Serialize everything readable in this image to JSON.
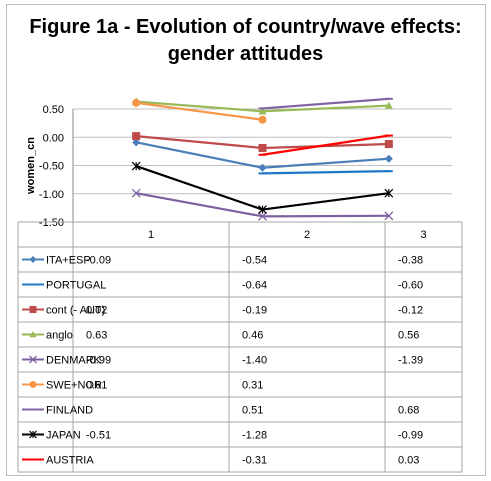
{
  "chart_data": {
    "type": "line",
    "title": "Figure 1a - Evolution of country/wave effects:",
    "subtitle": "gender attitudes",
    "xlabel": "",
    "ylabel": "women_cn",
    "x": [
      "1",
      "2",
      "3"
    ],
    "ylim": [
      -1.5,
      0.5
    ],
    "yticks": [
      "0.50",
      "0.00",
      "-0.50",
      "-1.00",
      "-1.50"
    ],
    "ytick_values": [
      0.5,
      0,
      -0.5,
      -1,
      -1.5
    ],
    "grid": true,
    "legend": "data-table",
    "series": [
      {
        "name": "ITA+ESP",
        "values": [
          -0.09,
          -0.54,
          -0.38
        ],
        "labels": [
          "-0.09",
          "-0.54",
          "-0.38"
        ],
        "color": "#4a7ebb",
        "marker": "diamond"
      },
      {
        "name": "PORTUGAL",
        "values": [
          null,
          -0.64,
          -0.6
        ],
        "labels": [
          "",
          "-0.64",
          "-0.60"
        ],
        "color": "#1f77c9",
        "marker": "dash"
      },
      {
        "name": "cont (- AUT)",
        "values": [
          0.02,
          -0.19,
          -0.12
        ],
        "labels": [
          "0.02",
          "-0.19",
          "-0.12"
        ],
        "color": "#be4b48",
        "marker": "square"
      },
      {
        "name": "anglo",
        "values": [
          0.63,
          0.46,
          0.56
        ],
        "labels": [
          "0.63",
          "0.46",
          "0.56"
        ],
        "color": "#98b954",
        "marker": "triangle"
      },
      {
        "name": "DENMARK",
        "values": [
          -0.99,
          -1.4,
          -1.39
        ],
        "labels": [
          "-0.99",
          "-1.40",
          "-1.39"
        ],
        "color": "#7d60a0",
        "marker": "x"
      },
      {
        "name": "SWE+NOR",
        "values": [
          0.61,
          0.31,
          null
        ],
        "labels": [
          "0.61",
          "0.31",
          ""
        ],
        "color": "#f79646",
        "marker": "circle"
      },
      {
        "name": "FINLAND",
        "values": [
          null,
          0.51,
          0.68
        ],
        "labels": [
          "",
          "0.51",
          "0.68"
        ],
        "color": "#8064a2",
        "marker": "dash"
      },
      {
        "name": "JAPAN",
        "values": [
          -0.51,
          -1.28,
          -0.99
        ],
        "labels": [
          "-0.51",
          "-1.28",
          "-0.99"
        ],
        "color": "#000000",
        "marker": "star"
      },
      {
        "name": "AUSTRIA",
        "values": [
          null,
          -0.31,
          0.03
        ],
        "labels": [
          "",
          "-0.31",
          "0.03"
        ],
        "color": "#ff0000",
        "marker": "dash"
      }
    ]
  }
}
